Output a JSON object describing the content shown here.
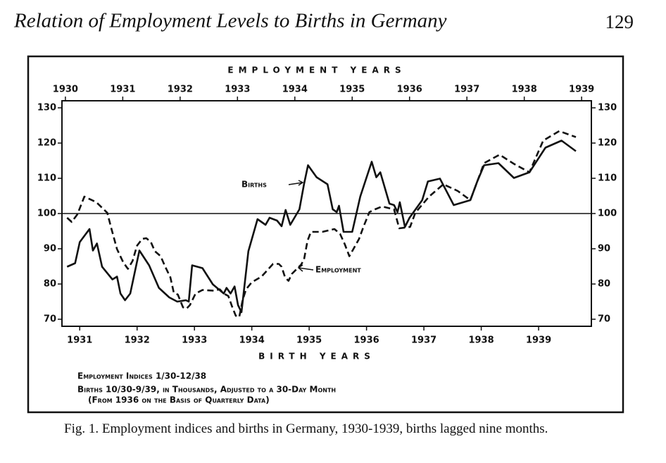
{
  "page": {
    "header": "Relation of Employment Levels to Births in Germany",
    "page_number": "129",
    "caption": "Fig. 1. Employment indices and births in Germany, 1930-1939, births lagged nine months."
  },
  "chart_data": {
    "type": "line",
    "top_axis_label": "EMPLOYMENT YEARS",
    "bottom_axis_label": "BIRTH YEARS",
    "notes": [
      "Employment Indices 1/30-12/38",
      "Births 10/30-9/39, in Thousands, Adjusted to a 30-Day Month",
      "(From 1936 on the Basis of Quarterly Data)"
    ],
    "xlim": [
      1929.94,
      1939.17
    ],
    "xticks": [
      1930,
      1931,
      1932,
      1933,
      1934,
      1935,
      1936,
      1937,
      1938,
      1939
    ],
    "x2ticks": [
      {
        "value": 1930.25,
        "label": "1931"
      },
      {
        "value": 1931.25,
        "label": "1932"
      },
      {
        "value": 1932.25,
        "label": "1933"
      },
      {
        "value": 1933.25,
        "label": "1934"
      },
      {
        "value": 1934.25,
        "label": "1935"
      },
      {
        "value": 1935.25,
        "label": "1936"
      },
      {
        "value": 1936.25,
        "label": "1937"
      },
      {
        "value": 1937.25,
        "label": "1938"
      },
      {
        "value": 1938.25,
        "label": "1939"
      }
    ],
    "ylim": [
      68,
      132
    ],
    "yticks": [
      70,
      80,
      90,
      100,
      110,
      120,
      130
    ],
    "y2lim": [
      68,
      132
    ],
    "y2ticks": [
      70,
      80,
      90,
      100,
      110,
      120,
      130
    ],
    "reference_line": 100,
    "series": [
      {
        "name": "Births",
        "color": "#111111",
        "dashed": false,
        "x": [
          1930.03,
          1930.17,
          1930.25,
          1930.42,
          1930.48,
          1930.55,
          1930.64,
          1930.82,
          1930.9,
          1930.96,
          1931.04,
          1931.13,
          1931.29,
          1931.46,
          1931.63,
          1931.81,
          1931.95,
          1932.1,
          1932.15,
          1932.21,
          1932.39,
          1932.57,
          1932.76,
          1932.81,
          1932.88,
          1932.95,
          1933.01,
          1933.07,
          1933.19,
          1933.35,
          1933.49,
          1933.56,
          1933.69,
          1933.77,
          1933.84,
          1933.92,
          1934.08,
          1934.16,
          1934.23,
          1934.38,
          1934.57,
          1934.66,
          1934.73,
          1934.77,
          1934.85,
          1935.0,
          1935.14,
          1935.34,
          1935.42,
          1935.49,
          1935.65,
          1935.73,
          1935.79,
          1935.83,
          1935.92,
          1936.0,
          1936.22,
          1936.32,
          1936.53,
          1936.77,
          1937.06,
          1937.18,
          1937.3,
          1937.55,
          1937.82,
          1938.09,
          1938.37,
          1938.65,
          1938.9
        ],
        "values": [
          84.9,
          85.9,
          91.9,
          95.6,
          89.5,
          91.5,
          84.9,
          81.3,
          82.1,
          77.3,
          75.4,
          77.3,
          89.5,
          85.3,
          78.9,
          76.2,
          75.0,
          75.4,
          75.0,
          85.3,
          84.5,
          79.9,
          77.3,
          78.9,
          77.3,
          79.3,
          74.0,
          72.0,
          89.3,
          98.4,
          96.8,
          98.8,
          98.0,
          96.4,
          101.0,
          96.8,
          101.2,
          108.3,
          113.7,
          110.3,
          108.3,
          101.2,
          100.4,
          102.2,
          94.8,
          94.8,
          104.8,
          114.7,
          110.3,
          111.7,
          102.8,
          102.4,
          100.4,
          103.2,
          96.2,
          98.8,
          103.8,
          109.1,
          109.9,
          102.4,
          103.8,
          109.1,
          113.7,
          114.3,
          110.1,
          111.7,
          118.7,
          120.7,
          117.7
        ]
      },
      {
        "name": "Employment",
        "color": "#111111",
        "dashed": true,
        "x": [
          1930.03,
          1930.11,
          1930.21,
          1930.33,
          1930.54,
          1930.73,
          1930.8,
          1930.9,
          1931.01,
          1931.09,
          1931.17,
          1931.25,
          1931.34,
          1931.41,
          1931.49,
          1931.56,
          1931.66,
          1931.74,
          1931.83,
          1931.89,
          1931.96,
          1932.05,
          1932.11,
          1932.17,
          1932.27,
          1932.39,
          1932.6,
          1932.69,
          1932.76,
          1932.84,
          1932.91,
          1932.97,
          1933.03,
          1933.09,
          1933.15,
          1933.25,
          1933.42,
          1933.52,
          1933.62,
          1933.72,
          1933.77,
          1933.83,
          1933.89,
          1933.95,
          1934.11,
          1934.16,
          1934.22,
          1934.28,
          1934.48,
          1934.69,
          1934.79,
          1934.87,
          1934.95,
          1935.02,
          1935.12,
          1935.2,
          1935.3,
          1935.4,
          1935.52,
          1935.73,
          1935.82,
          1936.01,
          1936.1,
          1936.34,
          1936.59,
          1936.84,
          1937.06,
          1937.3,
          1937.57,
          1937.82,
          1938.09,
          1938.33,
          1938.61,
          1938.9
        ],
        "values": [
          98.8,
          97.6,
          99.8,
          104.8,
          103.2,
          100.2,
          95.8,
          89.9,
          86.1,
          84.3,
          86.5,
          90.9,
          92.8,
          93.0,
          91.9,
          89.3,
          87.9,
          84.9,
          81.9,
          77.5,
          77.0,
          73.4,
          73.0,
          74.0,
          77.3,
          78.3,
          78.1,
          78.5,
          77.3,
          76.6,
          73.4,
          71.0,
          70.6,
          75.4,
          78.5,
          80.5,
          82.1,
          83.9,
          85.7,
          85.7,
          84.9,
          81.9,
          80.9,
          82.9,
          85.5,
          86.9,
          92.2,
          94.8,
          94.8,
          95.6,
          94.2,
          91.3,
          87.9,
          89.9,
          92.8,
          96.4,
          100.4,
          101.2,
          102.0,
          101.2,
          95.8,
          96.2,
          100.2,
          104.8,
          108.3,
          106.4,
          103.8,
          114.3,
          116.7,
          114.1,
          111.7,
          120.7,
          123.4,
          121.7
        ]
      }
    ]
  }
}
